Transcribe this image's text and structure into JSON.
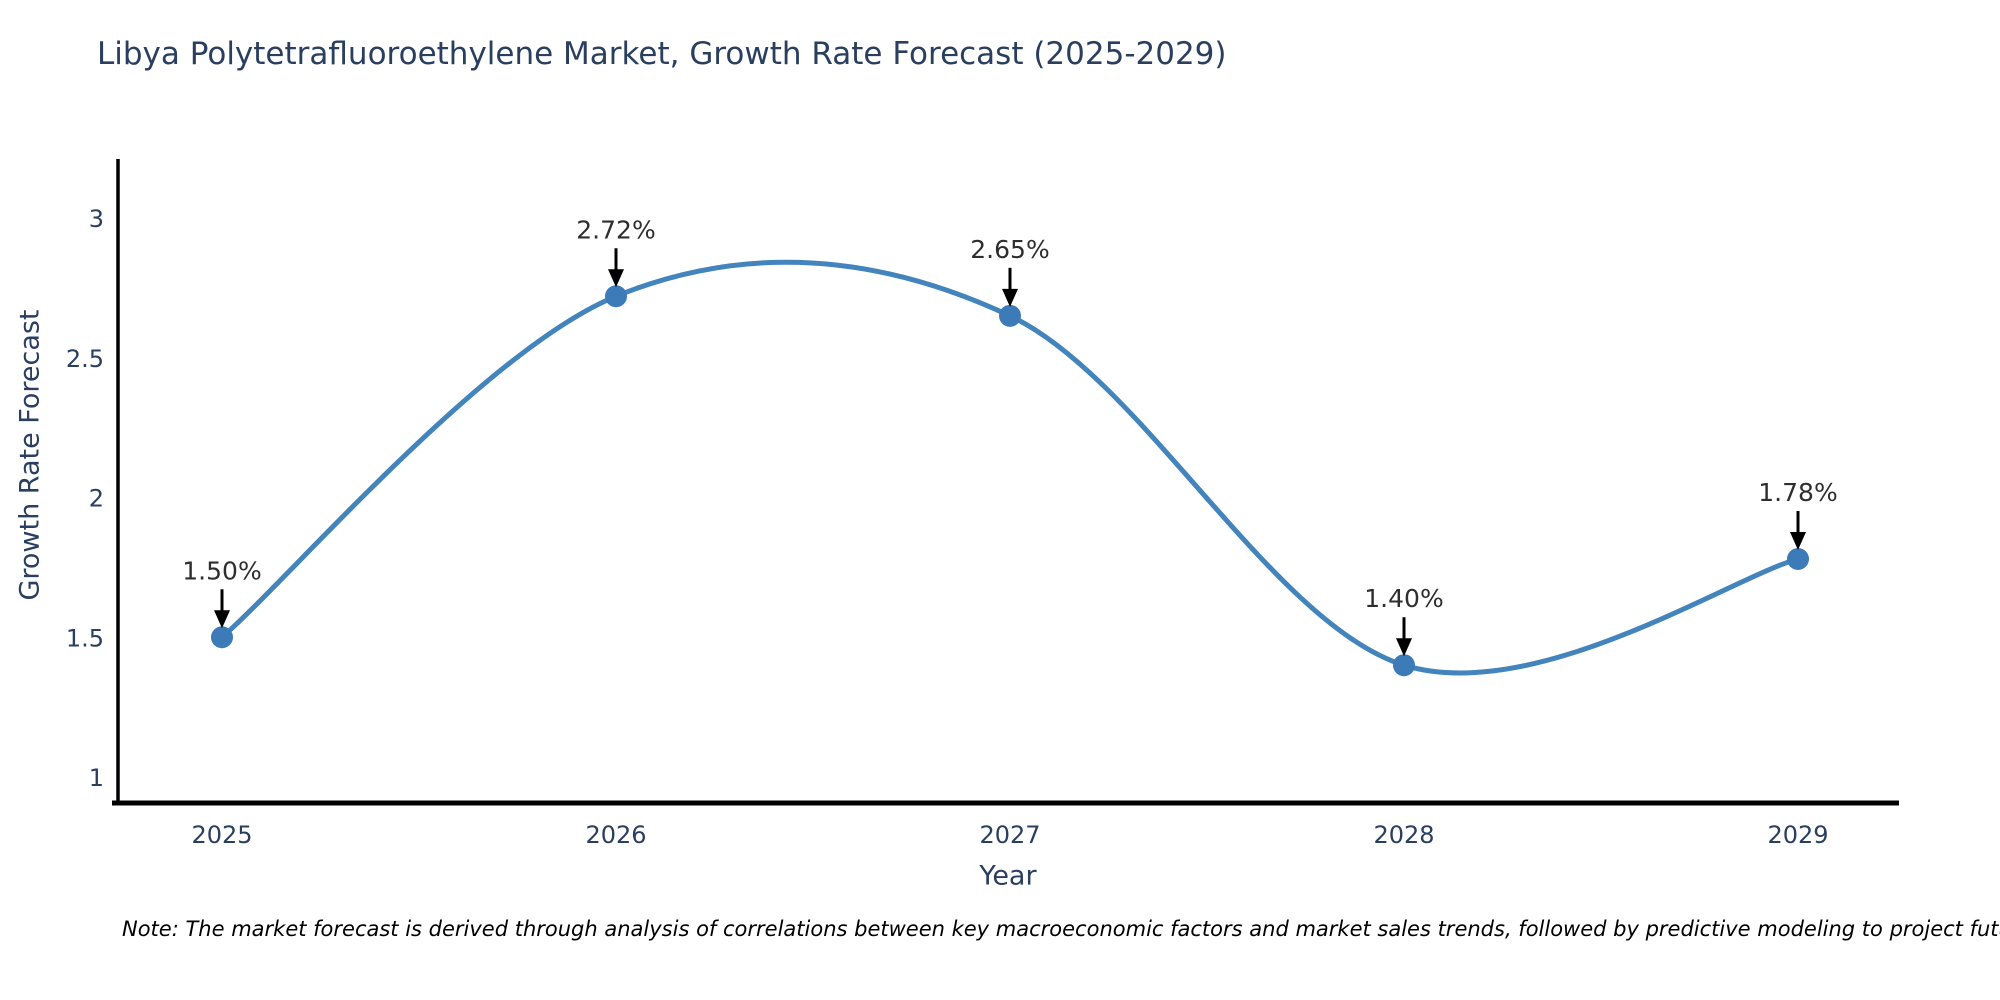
{
  "title": "Libya Polytetrafluoroethylene Market, Growth Rate Forecast (2025-2029)",
  "note": "Note: The market forecast is derived through analysis of correlations between key macroeconomic factors and market sales trends, followed by predictive modeling to project future sales",
  "chart_data": {
    "type": "line",
    "line_shape": "spline",
    "title": "Libya Polytetrafluoroethylene Market, Growth Rate Forecast (2025-2029)",
    "xlabel": "Year",
    "ylabel": "Growth Rate Forecast",
    "categories": [
      "2025",
      "2026",
      "2027",
      "2028",
      "2029"
    ],
    "values": [
      1.5,
      2.72,
      2.65,
      1.4,
      1.78
    ],
    "point_labels": [
      "1.50%",
      "2.72%",
      "2.65%",
      "1.40%",
      "1.78%"
    ],
    "yticks": [
      1,
      1.5,
      2,
      2.5,
      3
    ],
    "ylim": [
      0.9,
      3.21
    ],
    "grid": false,
    "legend": "none",
    "annotations": "arrow-down-to-point",
    "colors": {
      "line": "#4384bd",
      "marker": "#3d7ab8",
      "axis_line": "#000000",
      "axis_text": "#2a3f5f",
      "annotation_text": "#2e2e2e",
      "arrow": "#000000",
      "background": "#ffffff"
    }
  }
}
